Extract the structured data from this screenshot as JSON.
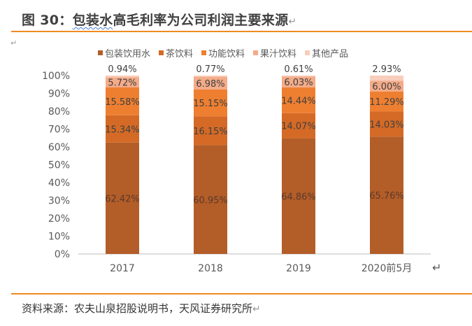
{
  "header": {
    "fig_label": "图 30：",
    "title_underlined": "包装水",
    "title_rest": "高毛利率为公司利润主要来源",
    "para_mark": "↵"
  },
  "source": "资料来源：农夫山泉招股说明书，天风证券研究所",
  "chart_data": {
    "type": "bar",
    "stacked": true,
    "categories": [
      "2017",
      "2018",
      "2019",
      "2020前5月"
    ],
    "ylim": [
      0,
      100
    ],
    "yticks": [
      "0%",
      "10%",
      "20%",
      "30%",
      "40%",
      "50%",
      "60%",
      "70%",
      "80%",
      "90%",
      "100%"
    ],
    "legend_position": "top",
    "grid": false,
    "series": [
      {
        "name": "包装饮用水",
        "color": "#b35d28",
        "label_color": "#5a3a2a",
        "values": [
          62.42,
          60.95,
          64.86,
          65.76
        ],
        "labels": [
          "62.42%",
          "60.95%",
          "64.86%",
          "65.76%"
        ]
      },
      {
        "name": "茶饮料",
        "color": "#d46a26",
        "label_color": "#404040",
        "values": [
          15.34,
          16.15,
          14.07,
          14.03
        ],
        "labels": [
          "15.34%",
          "16.15%",
          "14.07%",
          "14.03%"
        ]
      },
      {
        "name": "功能饮料",
        "color": "#ee7f31",
        "label_color": "#404040",
        "values": [
          15.58,
          15.15,
          14.44,
          11.29
        ],
        "labels": [
          "15.58%",
          "15.15%",
          "14.44%",
          "11.29%"
        ]
      },
      {
        "name": "果汁饮料",
        "color": "#f3ab88",
        "label_color": "#404040",
        "values": [
          5.72,
          6.98,
          6.03,
          6.0
        ],
        "labels": [
          "5.72%",
          "6.98%",
          "6.03%",
          "6.00%"
        ]
      },
      {
        "name": "其他产品",
        "color": "#f8cdbb",
        "label_color": "#404040",
        "values": [
          0.94,
          0.77,
          0.61,
          2.93
        ],
        "labels": [
          "0.94%",
          "0.77%",
          "0.61%",
          "2.93%"
        ]
      }
    ]
  }
}
